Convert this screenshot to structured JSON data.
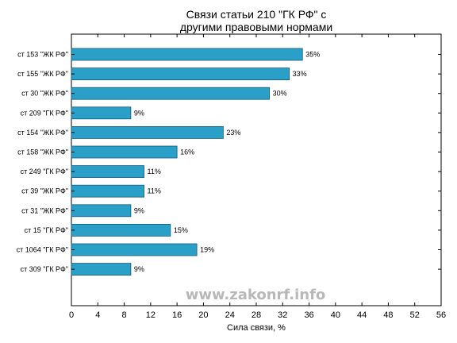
{
  "chart_data": {
    "type": "bar",
    "orientation": "horizontal",
    "title_lines": [
      "Связи статьи 210 \"ГК РФ\" с",
      "другими правовыми нормами"
    ],
    "xlabel": "Сила связи, %",
    "ylabel": "",
    "categories": [
      "ст 153 \"ЖК РФ\"",
      "ст 155 \"ЖК РФ\"",
      "ст 30 \"ЖК РФ\"",
      "ст 209 \"ГК РФ\"",
      "ст 154 \"ЖК РФ\"",
      "ст 158 \"ЖК РФ\"",
      "ст 249 \"ГК РФ\"",
      "ст 39 \"ЖК РФ\"",
      "ст 31 \"ЖК РФ\"",
      "ст 15 \"ГК РФ\"",
      "ст 1064 \"ГК РФ\"",
      "ст 309 \"ГК РФ\""
    ],
    "values": [
      35,
      33,
      30,
      9,
      23,
      16,
      11,
      11,
      9,
      15,
      19,
      9
    ],
    "value_labels": [
      "35%",
      "33%",
      "30%",
      "9%",
      "23%",
      "16%",
      "11%",
      "11%",
      "9%",
      "15%",
      "19%",
      "9%"
    ],
    "xlim": [
      0,
      56
    ],
    "xticks": [
      0,
      4,
      8,
      12,
      16,
      20,
      24,
      28,
      32,
      36,
      40,
      44,
      48,
      52,
      56
    ],
    "grid": false,
    "bar_color": "#2aa0c8",
    "bar_edge_color": "#1a5a78",
    "watermark": "www.zakonrf.info"
  }
}
